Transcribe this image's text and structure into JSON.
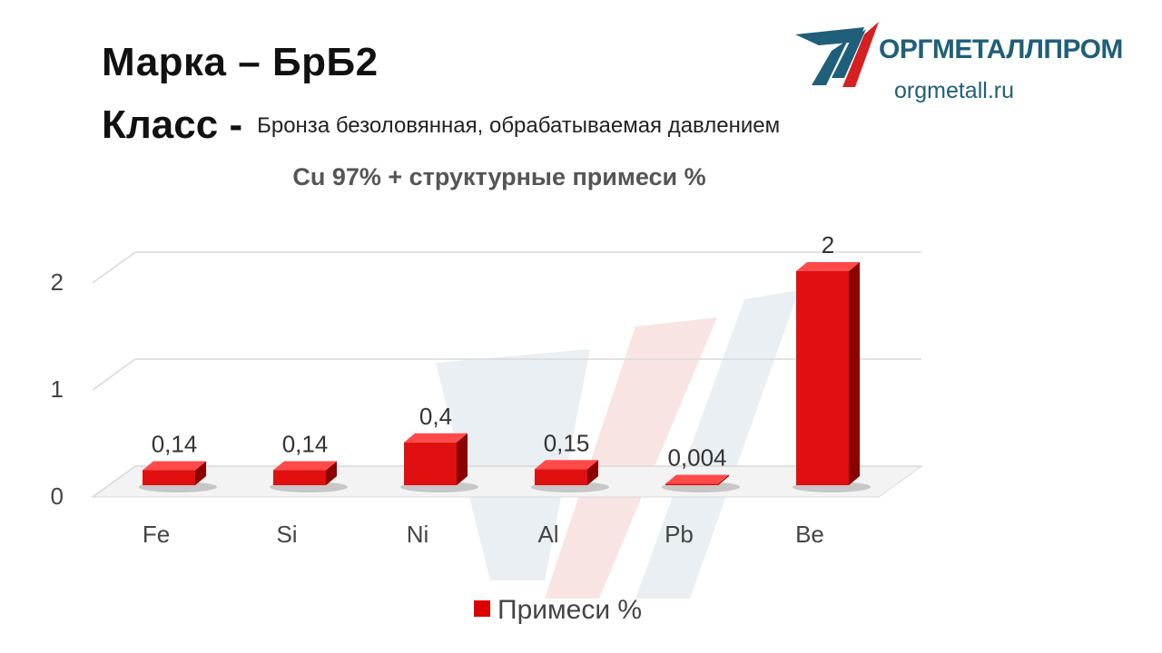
{
  "header": {
    "grade_label": "Марка",
    "grade_dash": "–",
    "grade_value": "БрБ2",
    "class_label": "Класс -",
    "class_value": "Бронза безоловянная, обрабатываемая давлением"
  },
  "logo": {
    "name": "ОРГМЕТАЛЛПРОМ",
    "url": "orgmetall.ru"
  },
  "chart_data": {
    "type": "bar",
    "title": "Cu 97% + структурные примеси %",
    "categories": [
      "Fe",
      "Si",
      "Ni",
      "Al",
      "Pb",
      "Be"
    ],
    "series": [
      {
        "name": "Примеси %",
        "values": [
          0.14,
          0.14,
          0.4,
          0.15,
          0.004,
          2
        ],
        "labels": [
          "0,14",
          "0,14",
          "0,4",
          "0,15",
          "0,004",
          "2"
        ]
      }
    ],
    "yticks": [
      0,
      1,
      2
    ],
    "ytick_labels": [
      "0",
      "1",
      "2"
    ],
    "ylim": [
      0,
      2.3
    ],
    "grid": true,
    "legend": "bottom",
    "colors": {
      "bar_front": "#e01010",
      "bar_side": "#8c0000",
      "bar_top": "#ff4a4a"
    }
  }
}
